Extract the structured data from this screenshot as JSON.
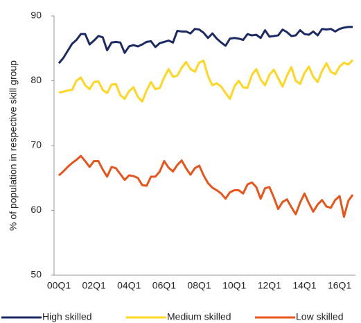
{
  "chart_data": {
    "type": "line",
    "ylabel": "% of population in respective skill group",
    "categories": [
      "00Q1",
      null,
      null,
      null,
      null,
      null,
      null,
      null,
      "02Q1",
      null,
      null,
      null,
      null,
      null,
      null,
      null,
      "04Q1",
      null,
      null,
      null,
      null,
      null,
      null,
      null,
      "06Q1",
      null,
      null,
      null,
      null,
      null,
      null,
      null,
      "08Q1",
      null,
      null,
      null,
      null,
      null,
      null,
      null,
      "10Q1",
      null,
      null,
      null,
      null,
      null,
      null,
      null,
      "12Q1",
      null,
      null,
      null,
      null,
      null,
      null,
      null,
      "14Q1",
      null,
      null,
      null,
      null,
      null,
      null,
      null,
      "16Q1",
      null,
      null,
      null
    ],
    "ylim": [
      50,
      90
    ],
    "yticks": [
      50,
      60,
      70,
      80,
      90
    ],
    "legend": "bottom",
    "series": [
      {
        "name": "High skilled",
        "color": "#1c2a64",
        "values": [
          82.7,
          83.5,
          84.6,
          85.7,
          86.3,
          87.2,
          87.2,
          85.6,
          86.2,
          86.9,
          86.7,
          84.7,
          85.9,
          86.0,
          85.9,
          84.3,
          85.3,
          85.5,
          85.3,
          85.6,
          86.0,
          86.1,
          85.2,
          85.8,
          86.0,
          86.2,
          85.9,
          87.7,
          87.6,
          87.6,
          87.3,
          88.0,
          87.9,
          87.4,
          86.6,
          87.3,
          86.5,
          85.9,
          85.4,
          86.5,
          86.6,
          86.5,
          86.3,
          87.2,
          87.0,
          87.1,
          86.6,
          87.8,
          86.8,
          86.9,
          87.0,
          87.9,
          87.5,
          86.9,
          87.0,
          87.8,
          87.2,
          87.1,
          87.6,
          87.0,
          88.0,
          87.9,
          88.0,
          87.6,
          88.0,
          88.2,
          88.3,
          88.3
        ]
      },
      {
        "name": "Medium skilled",
        "color": "#ffd620",
        "values": [
          78.2,
          78.3,
          78.5,
          78.6,
          80.0,
          80.5,
          79.3,
          78.7,
          79.8,
          79.9,
          78.6,
          78.1,
          79.4,
          79.5,
          77.8,
          77.2,
          78.4,
          79.0,
          77.5,
          76.8,
          78.5,
          79.8,
          78.7,
          78.9,
          80.5,
          81.8,
          80.6,
          80.8,
          82.0,
          82.9,
          81.8,
          81.4,
          82.8,
          83.1,
          80.7,
          79.3,
          79.6,
          79.1,
          78.1,
          77.2,
          79.1,
          80.0,
          79.0,
          78.9,
          80.9,
          81.8,
          80.2,
          79.3,
          80.9,
          81.7,
          80.4,
          79.1,
          80.8,
          82.1,
          80.0,
          79.5,
          81.2,
          82.2,
          80.6,
          79.8,
          81.5,
          82.7,
          81.4,
          81.0,
          82.2,
          82.8,
          82.5,
          83.2
        ]
      },
      {
        "name": "Low skilled",
        "color": "#e8541a",
        "values": [
          65.4,
          66.0,
          66.7,
          67.3,
          67.8,
          68.4,
          67.6,
          66.7,
          67.6,
          67.6,
          66.3,
          65.2,
          66.7,
          66.5,
          65.6,
          64.7,
          65.4,
          65.3,
          65.0,
          63.9,
          63.8,
          65.2,
          65.2,
          66.0,
          67.6,
          66.6,
          66.0,
          67.0,
          67.7,
          66.5,
          65.5,
          66.5,
          66.9,
          65.4,
          64.2,
          63.5,
          63.1,
          62.6,
          61.8,
          62.8,
          63.1,
          63.1,
          62.6,
          64.0,
          64.3,
          63.6,
          61.8,
          63.4,
          63.6,
          62.0,
          60.2,
          61.3,
          61.7,
          60.5,
          59.4,
          61.2,
          62.6,
          61.1,
          59.8,
          60.9,
          61.6,
          60.6,
          60.4,
          61.6,
          62.2,
          59.0,
          61.5,
          62.4
        ]
      }
    ]
  }
}
